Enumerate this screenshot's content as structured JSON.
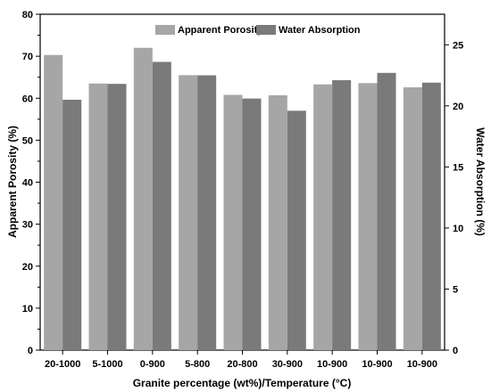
{
  "chart_data": {
    "type": "bar",
    "categories": [
      "20-1000",
      "5-1000",
      "0-900",
      "5-800",
      "20-800",
      "30-900",
      "10-900",
      "10-900",
      "10-900"
    ],
    "series": [
      {
        "name": "Apparent Porosity",
        "axis": "left",
        "color": "#a6a6a6",
        "values": [
          70.3,
          63.5,
          72.0,
          65.5,
          60.8,
          60.7,
          63.3,
          63.6,
          62.6
        ]
      },
      {
        "name": "Water Absorption",
        "axis": "right",
        "color": "#7a7a7a",
        "values": [
          20.5,
          21.8,
          23.6,
          22.5,
          20.6,
          19.6,
          22.1,
          22.7,
          21.9
        ]
      }
    ],
    "xlabel": "Granite percentage (wt%)/Temperature (°C)",
    "ylabel": "Apparent Porosity (%)",
    "y2label": "Water Absorption (%)",
    "ylim": [
      0,
      80
    ],
    "y2lim": [
      0,
      27.5
    ],
    "yticks": [
      0,
      10,
      20,
      30,
      40,
      50,
      60,
      70,
      80
    ],
    "y2ticks": [
      0,
      5,
      10,
      15,
      20,
      25
    ],
    "grid": false,
    "legend_position": "top-center"
  }
}
